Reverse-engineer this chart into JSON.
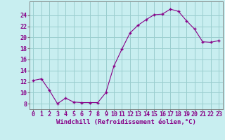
{
  "x": [
    0,
    1,
    2,
    3,
    4,
    5,
    6,
    7,
    8,
    9,
    10,
    11,
    12,
    13,
    14,
    15,
    16,
    17,
    18,
    19,
    20,
    21,
    22,
    23
  ],
  "y": [
    12.2,
    12.5,
    10.4,
    8.0,
    9.0,
    8.3,
    8.2,
    8.2,
    8.2,
    10.0,
    14.8,
    17.9,
    20.8,
    22.2,
    23.2,
    24.1,
    24.2,
    25.1,
    24.7,
    23.0,
    21.5,
    19.2,
    19.1,
    19.4
  ],
  "line_color": "#880088",
  "marker": "+",
  "background_color": "#c8eef0",
  "grid_color": "#9acece",
  "axis_color": "#777777",
  "xlabel": "Windchill (Refroidissement éolien,°C)",
  "xlim": [
    -0.5,
    23.5
  ],
  "ylim": [
    7.0,
    26.5
  ],
  "yticks": [
    8,
    10,
    12,
    14,
    16,
    18,
    20,
    22,
    24
  ],
  "xticks": [
    0,
    1,
    2,
    3,
    4,
    5,
    6,
    7,
    8,
    9,
    10,
    11,
    12,
    13,
    14,
    15,
    16,
    17,
    18,
    19,
    20,
    21,
    22,
    23
  ],
  "label_fontsize": 6.5,
  "tick_fontsize": 6.0,
  "linewidth": 0.8,
  "markersize": 3.5,
  "markeredgewidth": 1.0
}
